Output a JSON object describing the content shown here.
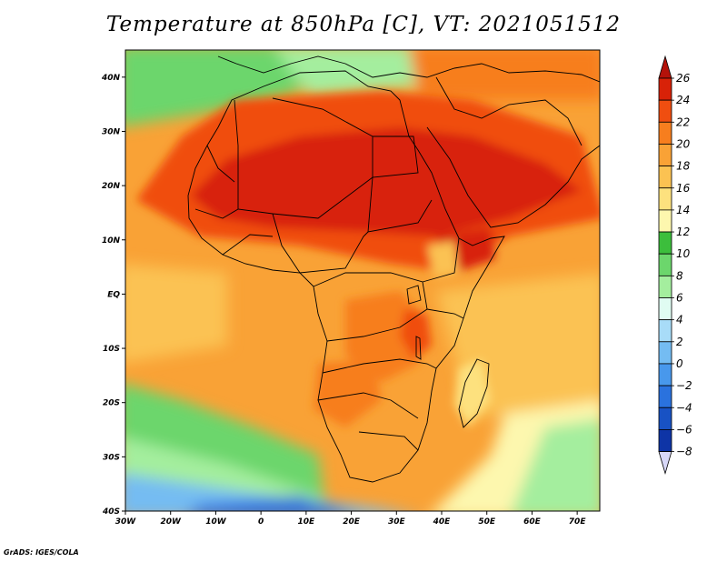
{
  "title": "Temperature at 850hPa [C], VT: 2021051512",
  "credit": "GrADS: IGES/COLA",
  "map": {
    "lon_range": [
      -30,
      75
    ],
    "lat_range": [
      -40,
      45
    ],
    "lat_ticks": [
      {
        "value": 40,
        "label": "40N"
      },
      {
        "value": 30,
        "label": "30N"
      },
      {
        "value": 20,
        "label": "20N"
      },
      {
        "value": 10,
        "label": "10N"
      },
      {
        "value": 0,
        "label": "EQ"
      },
      {
        "value": -10,
        "label": "10S"
      },
      {
        "value": -20,
        "label": "20S"
      },
      {
        "value": -30,
        "label": "30S"
      },
      {
        "value": -40,
        "label": "40S"
      }
    ],
    "lon_ticks": [
      {
        "value": -30,
        "label": "30W"
      },
      {
        "value": -20,
        "label": "20W"
      },
      {
        "value": -10,
        "label": "10W"
      },
      {
        "value": 0,
        "label": "0"
      },
      {
        "value": 10,
        "label": "10E"
      },
      {
        "value": 20,
        "label": "20E"
      },
      {
        "value": 30,
        "label": "30E"
      },
      {
        "value": 40,
        "label": "40E"
      },
      {
        "value": 50,
        "label": "50E"
      },
      {
        "value": 60,
        "label": "60E"
      },
      {
        "value": 70,
        "label": "70E"
      }
    ]
  },
  "colorbar": {
    "labels": [
      "26",
      "24",
      "22",
      "20",
      "18",
      "16",
      "14",
      "12",
      "10",
      "8",
      "6",
      "4",
      "2",
      "0",
      "−2",
      "−4",
      "−6",
      "−8"
    ],
    "colors": [
      "#d82208",
      "#f04e10",
      "#f77e1e",
      "#f9a236",
      "#fbc252",
      "#fde17e",
      "#fdf7ae",
      "#3cbe3c",
      "#6cd66c",
      "#a4ee9e",
      "#e0fcf2",
      "#a8dcf8",
      "#74bcf2",
      "#4898ec",
      "#2a72de",
      "#1852c4",
      "#0e34a6",
      "#061684"
    ],
    "top_arrow_color": "#b4120a",
    "bottom_arrow_color": "#d8d8f8"
  }
}
